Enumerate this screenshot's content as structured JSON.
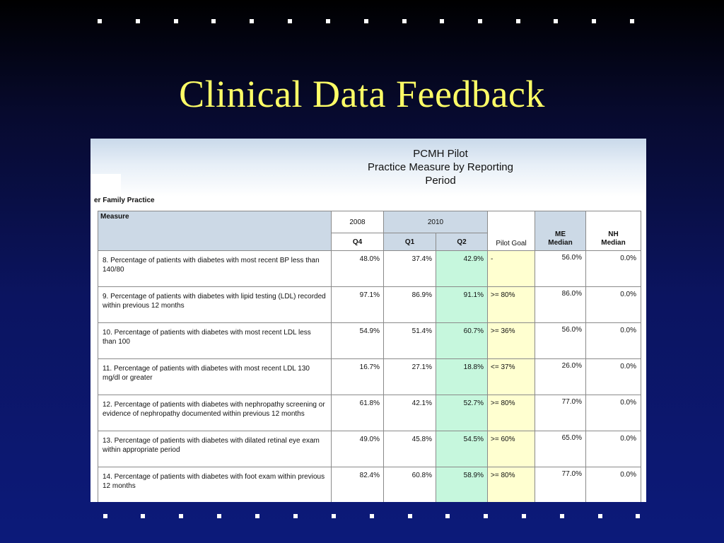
{
  "slide": {
    "title": "Clinical Data Feedback"
  },
  "report": {
    "header_lines": [
      "PCMH Pilot",
      "Practice Measure by Reporting",
      "Period"
    ],
    "practice_name": "er Family Practice",
    "columns": {
      "measure": "Measure",
      "year_2008": "2008",
      "year_2010": "2010",
      "q4": "Q4",
      "q1": "Q1",
      "q2": "Q2",
      "pilot_goal": "Pilot Goal",
      "me_median": "ME\nMedian",
      "nh_median": "NH\nMedian"
    },
    "rows": [
      {
        "measure": "8. Percentage of patients with diabetes with most recent BP less than 140/80",
        "q4_2008": "48.0%",
        "q1_2010": "37.4%",
        "q2_2010": "42.9%",
        "pilot_goal": "-",
        "me_median": "56.0%",
        "nh_median": "0.0%"
      },
      {
        "measure": "9. Percentage of patients with diabetes with lipid testing (LDL) recorded within previous 12 months",
        "q4_2008": "97.1%",
        "q1_2010": "86.9%",
        "q2_2010": "91.1%",
        "pilot_goal": ">= 80%",
        "me_median": "86.0%",
        "nh_median": "0.0%"
      },
      {
        "measure": "10. Percentage of patients with diabetes with most recent LDL less than 100",
        "q4_2008": "54.9%",
        "q1_2010": "51.4%",
        "q2_2010": "60.7%",
        "pilot_goal": ">= 36%",
        "me_median": "56.0%",
        "nh_median": "0.0%"
      },
      {
        "measure": "11. Percentage of patients with diabetes with most recent LDL 130 mg/dl or greater",
        "q4_2008": "16.7%",
        "q1_2010": "27.1%",
        "q2_2010": "18.8%",
        "pilot_goal": "<= 37%",
        "me_median": "26.0%",
        "nh_median": "0.0%"
      },
      {
        "measure": "12. Percentage of patients with diabetes with nephropathy screening or evidence of nephropathy documented within previous 12 months",
        "q4_2008": "61.8%",
        "q1_2010": "42.1%",
        "q2_2010": "52.7%",
        "pilot_goal": ">= 80%",
        "me_median": "77.0%",
        "nh_median": "0.0%"
      },
      {
        "measure": "13. Percentage of patients with diabetes with dilated retinal eye exam within appropriate period",
        "q4_2008": "49.0%",
        "q1_2010": "45.8%",
        "q2_2010": "54.5%",
        "pilot_goal": ">= 60%",
        "me_median": "65.0%",
        "nh_median": "0.0%"
      },
      {
        "measure": "14. Percentage of patients with diabetes with foot exam within previous 12 months",
        "q4_2008": "82.4%",
        "q1_2010": "60.8%",
        "q2_2010": "58.9%",
        "pilot_goal": ">= 80%",
        "me_median": "77.0%",
        "nh_median": "0.0%"
      }
    ]
  }
}
